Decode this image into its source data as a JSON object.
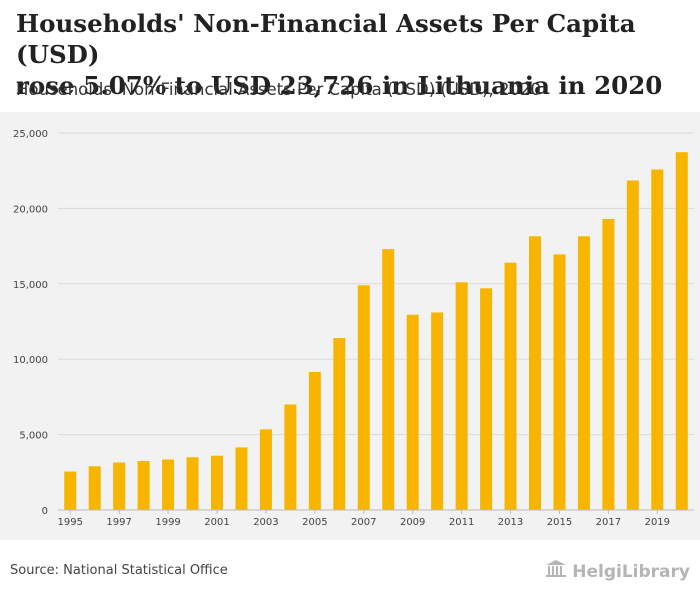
{
  "header": {
    "title_line1": "Households' Non-Financial Assets Per Capita (USD)",
    "title_line2": "rose 5.07% to USD 23,726 in Lithuania in 2020",
    "subtitle": "Households' Non-Financial Assets Per Capita (USD) (USD), 2020"
  },
  "footer": {
    "source": "Source: National Statistical Office",
    "brand": "HelgiLibrary"
  },
  "colors": {
    "bar": "#f7b500",
    "grid": "#d9d9d9",
    "background": "#f2f2f2"
  },
  "chart_data": {
    "type": "bar",
    "title": "Households' Non-Financial Assets Per Capita (USD) (USD), 2020",
    "xlabel": "",
    "ylabel": "",
    "ylim": [
      0,
      25000
    ],
    "yticks": [
      0,
      5000,
      10000,
      15000,
      20000,
      25000
    ],
    "ytick_labels": [
      "0",
      "5,000",
      "10,000",
      "15,000",
      "20,000",
      "25,000"
    ],
    "categories": [
      "1995",
      "1996",
      "1997",
      "1998",
      "1999",
      "2000",
      "2001",
      "2002",
      "2003",
      "2004",
      "2005",
      "2006",
      "2007",
      "2008",
      "2009",
      "2010",
      "2011",
      "2012",
      "2013",
      "2014",
      "2015",
      "2016",
      "2017",
      "2018",
      "2019",
      "2020"
    ],
    "xtick_labels": [
      "1995",
      "1997",
      "1999",
      "2001",
      "2003",
      "2005",
      "2007",
      "2009",
      "2011",
      "2013",
      "2015",
      "2017",
      "2019"
    ],
    "values": [
      2550,
      2900,
      3150,
      3250,
      3350,
      3500,
      3600,
      4150,
      5350,
      7000,
      9150,
      11400,
      14900,
      17300,
      12950,
      13100,
      15100,
      14700,
      16400,
      18150,
      16950,
      18150,
      19300,
      21850,
      22580,
      23726
    ],
    "grid": true
  }
}
